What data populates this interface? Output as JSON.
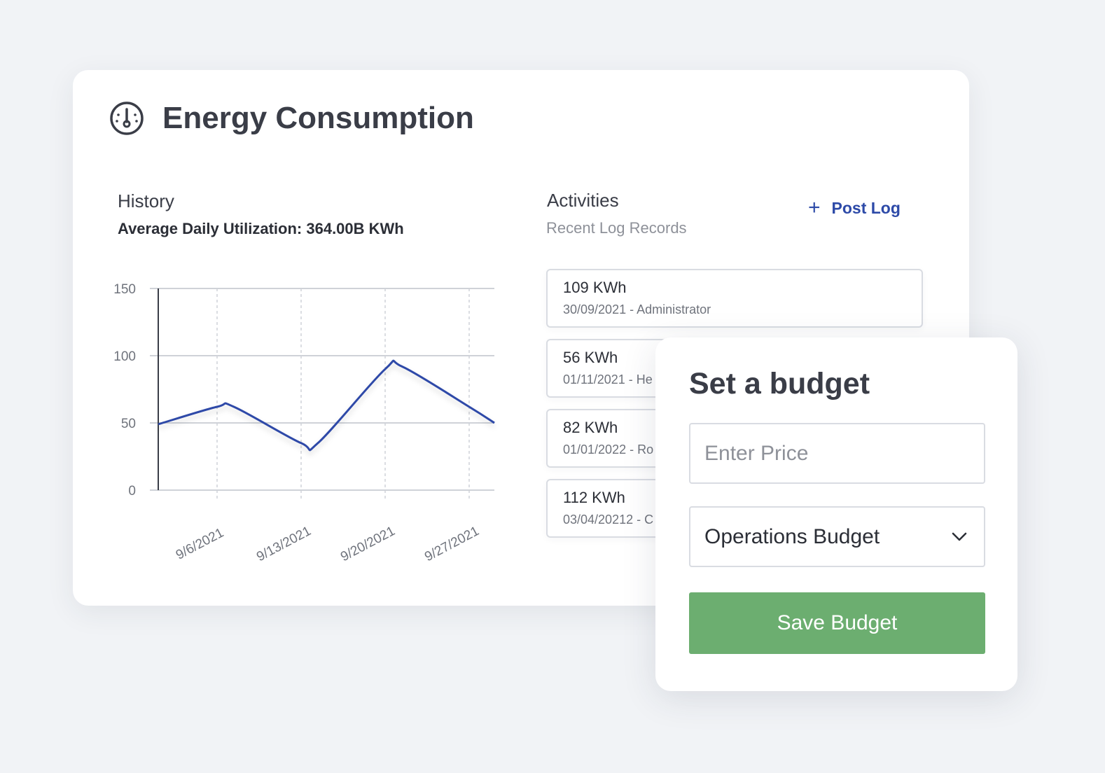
{
  "header": {
    "title": "Energy Consumption",
    "icon": "gauge-icon"
  },
  "history": {
    "title": "History",
    "subtitle": "Average Daily Utilization: 364.00B KWh"
  },
  "activities": {
    "title": "Activities",
    "subtitle": "Recent Log Records",
    "post_log_label": "Post Log",
    "post_log_icon": "plus-icon",
    "logs": [
      {
        "value": "109 KWh",
        "meta": "30/09/2021 - Administrator"
      },
      {
        "value": "56 KWh",
        "meta": "01/11/2021 - He"
      },
      {
        "value": "82 KWh",
        "meta": "01/01/2022 - Ro"
      },
      {
        "value": "112 KWh",
        "meta": "03/04/20212 - C"
      }
    ]
  },
  "budget": {
    "title": "Set a budget",
    "price_placeholder": "Enter Price",
    "select_value": "Operations Budget",
    "select_icon": "chevron-down-icon",
    "save_label": "Save Budget"
  },
  "colors": {
    "accent": "#2d4aa8",
    "line": "#2e49a8",
    "save_button": "#6cae70",
    "background": "#f1f3f6"
  },
  "chart_data": {
    "type": "line",
    "categories": [
      "9/6/2021",
      "9/13/2021",
      "9/20/2021",
      "9/27/2021"
    ],
    "x": [
      -0.7,
      0,
      0.2,
      1,
      1.2,
      2,
      2.2,
      3,
      3.3
    ],
    "values": [
      49,
      62,
      62,
      35,
      35,
      90,
      92,
      62,
      50
    ],
    "ylim": [
      0,
      150
    ],
    "yticks": [
      "150",
      "100",
      "50",
      "0"
    ],
    "xlim": [
      -0.7,
      3.3
    ],
    "grid": true
  }
}
